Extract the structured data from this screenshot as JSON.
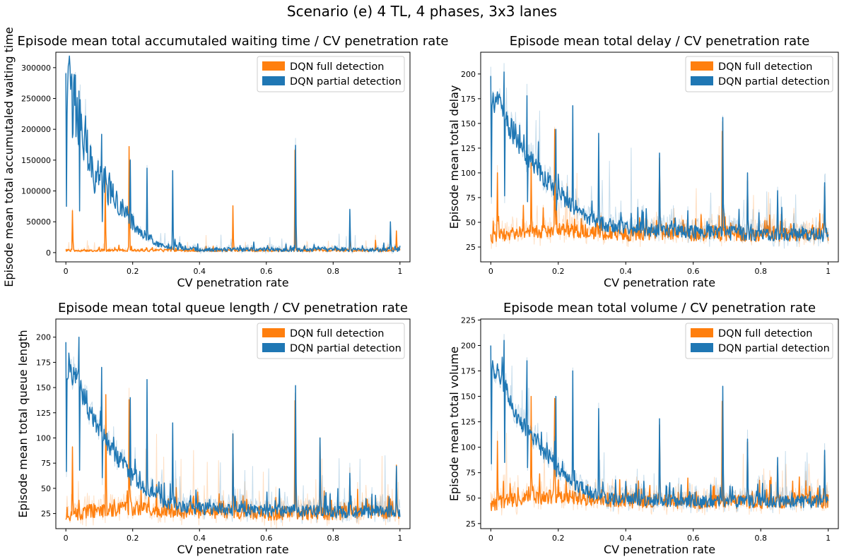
{
  "figure": {
    "suptitle": "Scenario (e) 4 TL, 4 phases, 3x3 lanes"
  },
  "chart_data": [
    {
      "type": "line",
      "title": "Episode mean total accumutaled waiting time / CV penetration rate",
      "xlabel": "CV penetration rate",
      "ylabel": "Episode mean total accumutaled waiting time",
      "xlim": [
        -0.03,
        1.03
      ],
      "ylim": [
        -15000,
        325000
      ],
      "xticks": [
        0.0,
        0.2,
        0.4,
        0.6,
        0.8,
        1.0
      ],
      "yticks": [
        0,
        50000,
        100000,
        150000,
        200000,
        250000,
        300000
      ],
      "legend": "top-right",
      "grid": false,
      "series": [
        {
          "name": "DQN full detection",
          "color": "#ff7f0e",
          "base": 3000,
          "noise": 4000,
          "x": [
            0.0,
            0.05,
            0.1,
            0.15,
            0.2,
            0.3,
            0.4,
            0.5,
            0.6,
            0.7,
            0.8,
            0.9,
            1.0
          ],
          "y": [
            3000,
            3000,
            3000,
            3000,
            3000,
            3000,
            3000,
            3000,
            3000,
            3000,
            3000,
            3000,
            3000
          ],
          "spikes": [
            [
              0.019,
              68000
            ],
            [
              0.118,
              120000
            ],
            [
              0.19,
              172000
            ],
            [
              0.5,
              76000
            ],
            [
              0.686,
              166000
            ],
            [
              0.85,
              37000
            ],
            [
              0.927,
              20000
            ],
            [
              0.99,
              35000
            ]
          ]
        },
        {
          "name": "DQN partial detection",
          "color": "#1f77b4",
          "base": 3000,
          "noise": 6000,
          "x": [
            0.0,
            0.01,
            0.02,
            0.04,
            0.06,
            0.08,
            0.1,
            0.12,
            0.15,
            0.18,
            0.2,
            0.22,
            0.25,
            0.28,
            0.3,
            0.35,
            0.4,
            0.5,
            0.6,
            0.7,
            0.8,
            0.9,
            1.0
          ],
          "y": [
            230000,
            240000,
            225000,
            205000,
            165000,
            120000,
            110000,
            100000,
            75000,
            60000,
            45000,
            35000,
            22000,
            12000,
            9000,
            6000,
            4000,
            4000,
            4000,
            4000,
            4000,
            4000,
            4000
          ],
          "spikes": [
            [
              0.0,
              291000
            ],
            [
              0.04,
              262000
            ],
            [
              0.107,
              192000
            ],
            [
              0.193,
              150000
            ],
            [
              0.243,
              137000
            ],
            [
              0.32,
              133000
            ],
            [
              0.687,
              174000
            ],
            [
              0.85,
              70000
            ],
            [
              0.972,
              50000
            ]
          ]
        }
      ]
    },
    {
      "type": "line",
      "title": "Episode mean total delay / CV penetration rate",
      "xlabel": "CV penetration rate",
      "ylabel": "Episode mean total delay",
      "xlim": [
        -0.03,
        1.03
      ],
      "ylim": [
        10,
        222
      ],
      "xticks": [
        0.0,
        0.2,
        0.4,
        0.6,
        0.8,
        1.0
      ],
      "yticks": [
        25,
        50,
        75,
        100,
        125,
        150,
        175,
        200
      ],
      "legend": "top-right",
      "grid": false,
      "series": [
        {
          "name": "DQN full detection",
          "color": "#ff7f0e",
          "base": 35,
          "noise": 14,
          "x": [
            0.0,
            0.1,
            0.2,
            0.3,
            0.4,
            0.5,
            0.6,
            0.7,
            0.8,
            0.9,
            1.0
          ],
          "y": [
            33,
            38,
            40,
            38,
            36,
            37,
            36,
            36,
            35,
            36,
            36
          ],
          "spikes": [
            [
              0.02,
              100
            ],
            [
              0.12,
              110
            ],
            [
              0.19,
              144
            ],
            [
              0.5,
              115
            ],
            [
              0.686,
              142
            ],
            [
              0.76,
              92
            ],
            [
              0.85,
              62
            ],
            [
              0.99,
              86
            ]
          ]
        },
        {
          "name": "DQN partial detection",
          "color": "#1f77b4",
          "base": 35,
          "noise": 14,
          "x": [
            0.0,
            0.02,
            0.04,
            0.06,
            0.08,
            0.1,
            0.12,
            0.15,
            0.18,
            0.2,
            0.22,
            0.25,
            0.28,
            0.3,
            0.35,
            0.4,
            0.5,
            0.6,
            0.7,
            0.8,
            0.9,
            1.0
          ],
          "y": [
            175,
            165,
            160,
            140,
            125,
            115,
            110,
            95,
            85,
            78,
            70,
            62,
            55,
            50,
            45,
            42,
            40,
            38,
            37,
            36,
            36,
            35
          ],
          "spikes": [
            [
              0.0,
              198
            ],
            [
              0.04,
              202
            ],
            [
              0.107,
              178
            ],
            [
              0.193,
              144
            ],
            [
              0.243,
              168
            ],
            [
              0.32,
              140
            ],
            [
              0.5,
              120
            ],
            [
              0.687,
              156
            ],
            [
              0.76,
              100
            ],
            [
              0.85,
              82
            ],
            [
              0.99,
              90
            ]
          ]
        }
      ]
    },
    {
      "type": "line",
      "title": "Episode mean total queue length / CV penetration rate",
      "xlabel": "CV penetration rate",
      "ylabel": "Episode mean total queue length",
      "xlim": [
        -0.03,
        1.03
      ],
      "ylim": [
        10,
        218
      ],
      "xticks": [
        0.0,
        0.2,
        0.4,
        0.6,
        0.8,
        1.0
      ],
      "yticks": [
        25,
        50,
        75,
        100,
        125,
        150,
        175,
        200
      ],
      "legend": "top-right",
      "grid": false,
      "series": [
        {
          "name": "DQN full detection",
          "color": "#ff7f0e",
          "base": 22,
          "noise": 14,
          "x": [
            0.0,
            0.1,
            0.2,
            0.3,
            0.4,
            0.5,
            0.6,
            0.7,
            0.8,
            0.9,
            1.0
          ],
          "y": [
            22,
            26,
            28,
            26,
            24,
            24,
            23,
            24,
            23,
            24,
            24
          ],
          "spikes": [
            [
              0.02,
              91
            ],
            [
              0.12,
              143
            ],
            [
              0.19,
              138
            ],
            [
              0.5,
              104
            ],
            [
              0.686,
              137
            ],
            [
              0.76,
              100
            ],
            [
              0.85,
              60
            ],
            [
              0.99,
              73
            ]
          ]
        },
        {
          "name": "DQN partial detection",
          "color": "#1f77b4",
          "base": 24,
          "noise": 12,
          "x": [
            0.0,
            0.02,
            0.04,
            0.06,
            0.08,
            0.1,
            0.12,
            0.15,
            0.18,
            0.2,
            0.22,
            0.25,
            0.28,
            0.3,
            0.35,
            0.4,
            0.5,
            0.6,
            0.7,
            0.8,
            0.9,
            1.0
          ],
          "y": [
            170,
            160,
            150,
            130,
            115,
            105,
            95,
            80,
            68,
            60,
            52,
            45,
            38,
            34,
            30,
            28,
            27,
            26,
            26,
            25,
            25,
            25
          ],
          "spikes": [
            [
              0.0,
              195
            ],
            [
              0.04,
              200
            ],
            [
              0.107,
              170
            ],
            [
              0.193,
              140
            ],
            [
              0.243,
              158
            ],
            [
              0.32,
              115
            ],
            [
              0.5,
              104
            ],
            [
              0.687,
              152
            ],
            [
              0.76,
              100
            ],
            [
              0.85,
              65
            ],
            [
              0.99,
              72
            ]
          ]
        }
      ]
    },
    {
      "type": "line",
      "title": "Episode mean total volume / CV penetration rate",
      "xlabel": "CV penetration rate",
      "ylabel": "Episode mean total volume",
      "xlim": [
        -0.03,
        1.03
      ],
      "ylim": [
        20,
        226
      ],
      "xticks": [
        0.0,
        0.2,
        0.4,
        0.6,
        0.8,
        1.0
      ],
      "yticks": [
        25,
        50,
        75,
        100,
        125,
        150,
        175,
        200,
        225
      ],
      "legend": "top-right",
      "grid": false,
      "series": [
        {
          "name": "DQN full detection",
          "color": "#ff7f0e",
          "base": 44,
          "noise": 14,
          "x": [
            0.0,
            0.1,
            0.2,
            0.3,
            0.4,
            0.5,
            0.6,
            0.7,
            0.8,
            0.9,
            1.0
          ],
          "y": [
            42,
            48,
            50,
            47,
            45,
            45,
            44,
            45,
            44,
            45,
            45
          ],
          "spikes": [
            [
              0.02,
              106
            ],
            [
              0.12,
              150
            ],
            [
              0.19,
              148
            ],
            [
              0.5,
              122
            ],
            [
              0.686,
              145
            ],
            [
              0.76,
              105
            ],
            [
              0.85,
              70
            ],
            [
              0.99,
              92
            ]
          ]
        },
        {
          "name": "DQN partial detection",
          "color": "#1f77b4",
          "base": 45,
          "noise": 12,
          "x": [
            0.0,
            0.02,
            0.04,
            0.06,
            0.08,
            0.1,
            0.12,
            0.15,
            0.18,
            0.2,
            0.22,
            0.25,
            0.28,
            0.3,
            0.35,
            0.4,
            0.5,
            0.6,
            0.7,
            0.8,
            0.9,
            1.0
          ],
          "y": [
            175,
            170,
            160,
            140,
            125,
            118,
            110,
            95,
            85,
            78,
            70,
            62,
            56,
            52,
            48,
            47,
            46,
            45,
            45,
            45,
            45,
            45
          ],
          "spikes": [
            [
              0.0,
              200
            ],
            [
              0.04,
              205
            ],
            [
              0.107,
              185
            ],
            [
              0.193,
              150
            ],
            [
              0.243,
              175
            ],
            [
              0.32,
              138
            ],
            [
              0.5,
              128
            ],
            [
              0.687,
              160
            ],
            [
              0.76,
              108
            ],
            [
              0.85,
              90
            ],
            [
              0.99,
              97
            ]
          ]
        }
      ]
    }
  ]
}
